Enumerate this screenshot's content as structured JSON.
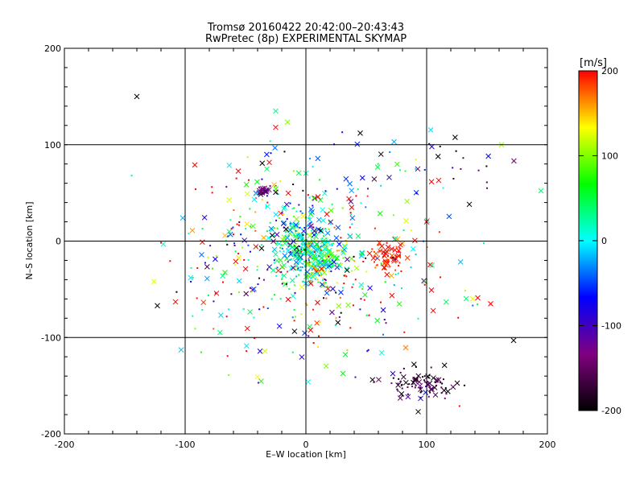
{
  "chart_data": {
    "type": "scatter",
    "title": "Tromsø 20160422 20:42:00–20:43:43",
    "subtitle": "RwPretec (8p) EXPERIMENTAL SKYMAP",
    "xlabel": "E–W location [km]",
    "ylabel": "N–S location [km]",
    "xlim": [
      -200,
      200
    ],
    "ylim": [
      -200,
      200
    ],
    "xticks": [
      "-200",
      "-100",
      "0",
      "100",
      "200"
    ],
    "yticks": [
      "-200",
      "-100",
      "0",
      "100",
      "200"
    ],
    "grid": true,
    "colorbar": {
      "label": "[m/s]",
      "range": [
        -200,
        200
      ],
      "ticks": [
        "-200",
        "-100",
        "0",
        "100",
        "200"
      ],
      "colormap": [
        "#000000",
        "#800080",
        "#0000ff",
        "#00ffff",
        "#00ff00",
        "#ffff00",
        "#ff0000"
      ]
    },
    "clusters": [
      {
        "cx": -2,
        "cy": -5,
        "sx": 14,
        "sy": 16,
        "n": 260,
        "vel": 20,
        "vsd": 60
      },
      {
        "cx": 12,
        "cy": -22,
        "sx": 10,
        "sy": 12,
        "n": 120,
        "vel": 40,
        "vsd": 70
      },
      {
        "cx": 68,
        "cy": -15,
        "sx": 8,
        "sy": 9,
        "n": 70,
        "vel": 190,
        "vsd": 15
      },
      {
        "cx": 97,
        "cy": -148,
        "sx": 16,
        "sy": 8,
        "n": 90,
        "vel": -170,
        "vsd": 40
      },
      {
        "cx": -35,
        "cy": 52,
        "sx": 4,
        "sy": 3,
        "n": 35,
        "vel": -130,
        "vsd": 25
      },
      {
        "cx": -25,
        "cy": 30,
        "sx": 25,
        "sy": 28,
        "n": 80,
        "vel": 20,
        "vsd": 150
      },
      {
        "cx": 40,
        "cy": -40,
        "sx": 50,
        "sy": 40,
        "n": 150,
        "vel": 60,
        "vsd": 160
      },
      {
        "cx": -60,
        "cy": -25,
        "sx": 30,
        "sy": 35,
        "n": 90,
        "vel": 60,
        "vsd": 150
      },
      {
        "cx": 40,
        "cy": 60,
        "sx": 60,
        "sy": 30,
        "n": 60,
        "vel": 40,
        "vsd": 150
      },
      {
        "cx": 0,
        "cy": -80,
        "sx": 40,
        "sy": 40,
        "n": 60,
        "vel": 80,
        "vsd": 160
      },
      {
        "cx": 120,
        "cy": 85,
        "sx": 25,
        "sy": 15,
        "n": 20,
        "vel": -150,
        "vsd": 60
      }
    ],
    "outliers": [
      {
        "x": -140,
        "y": 150,
        "v": -200
      },
      {
        "x": -123,
        "y": -67,
        "v": -200
      },
      {
        "x": -108,
        "y": -63,
        "v": 200
      },
      {
        "x": -92,
        "y": 79,
        "v": 200
      },
      {
        "x": -102,
        "y": 24,
        "v": -20
      },
      {
        "x": 172,
        "y": -103,
        "v": -200
      },
      {
        "x": 153,
        "y": -65,
        "v": 200
      },
      {
        "x": 162,
        "y": 100,
        "v": 110
      },
      {
        "x": -25,
        "y": 135,
        "v": 30
      },
      {
        "x": 73,
        "y": 103,
        "v": -20
      },
      {
        "x": 45,
        "y": 112,
        "v": -200
      },
      {
        "x": -25,
        "y": 118,
        "v": 200
      },
      {
        "x": 93,
        "y": -177,
        "v": -200
      },
      {
        "x": 110,
        "y": 63,
        "v": 200
      },
      {
        "x": 100,
        "y": 20,
        "v": 200
      }
    ]
  }
}
